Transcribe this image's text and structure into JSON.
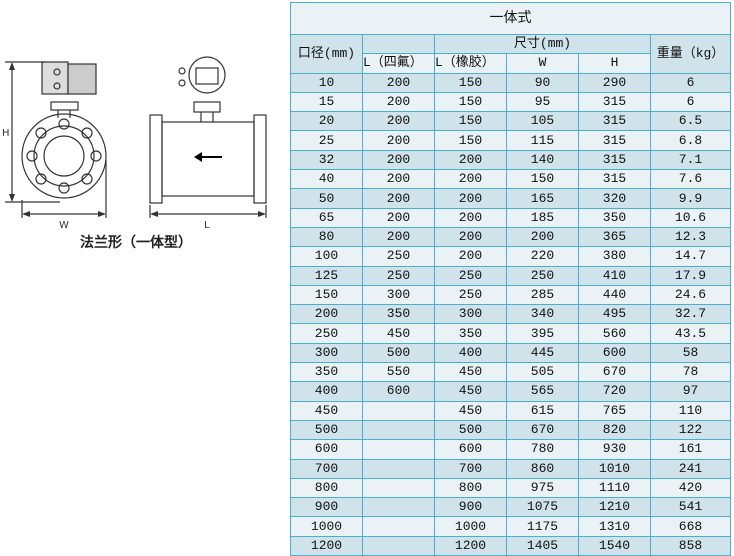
{
  "diagram": {
    "labels": {
      "H": "H",
      "W": "W",
      "L": "L"
    },
    "caption": "法兰形（一体型）"
  },
  "table": {
    "title": "一体式",
    "header": {
      "diameter": "口径(mm)",
      "size_group": "尺寸(mm)",
      "weight": "重量（kg）",
      "l_ptfe": "L（四氟）",
      "l_rubber": "L（橡胶）",
      "w": "W",
      "h": "H"
    },
    "rows": [
      [
        "10",
        "200",
        "150",
        "90",
        "290",
        "6"
      ],
      [
        "15",
        "200",
        "150",
        "95",
        "315",
        "6"
      ],
      [
        "20",
        "200",
        "150",
        "105",
        "315",
        "6.5"
      ],
      [
        "25",
        "200",
        "150",
        "115",
        "315",
        "6.8"
      ],
      [
        "32",
        "200",
        "200",
        "140",
        "315",
        "7.1"
      ],
      [
        "40",
        "200",
        "200",
        "150",
        "315",
        "7.6"
      ],
      [
        "50",
        "200",
        "200",
        "165",
        "320",
        "9.9"
      ],
      [
        "65",
        "200",
        "200",
        "185",
        "350",
        "10.6"
      ],
      [
        "80",
        "200",
        "200",
        "200",
        "365",
        "12.3"
      ],
      [
        "100",
        "250",
        "200",
        "220",
        "380",
        "14.7"
      ],
      [
        "125",
        "250",
        "250",
        "250",
        "410",
        "17.9"
      ],
      [
        "150",
        "300",
        "250",
        "285",
        "440",
        "24.6"
      ],
      [
        "200",
        "350",
        "300",
        "340",
        "495",
        "32.7"
      ],
      [
        "250",
        "450",
        "350",
        "395",
        "560",
        "43.5"
      ],
      [
        "300",
        "500",
        "400",
        "445",
        "600",
        "58"
      ],
      [
        "350",
        "550",
        "450",
        "505",
        "670",
        "78"
      ],
      [
        "400",
        "600",
        "450",
        "565",
        "720",
        "97"
      ],
      [
        "450",
        "",
        "450",
        "615",
        "765",
        "110"
      ],
      [
        "500",
        "",
        "500",
        "670",
        "820",
        "122"
      ],
      [
        "600",
        "",
        "600",
        "780",
        "930",
        "161"
      ],
      [
        "700",
        "",
        "700",
        "860",
        "1010",
        "241"
      ],
      [
        "800",
        "",
        "800",
        "975",
        "1110",
        "420"
      ],
      [
        "900",
        "",
        "900",
        "1075",
        "1210",
        "541"
      ],
      [
        "1000",
        "",
        "1000",
        "1175",
        "1310",
        "668"
      ],
      [
        "1200",
        "",
        "1200",
        "1405",
        "1540",
        "858"
      ]
    ]
  }
}
